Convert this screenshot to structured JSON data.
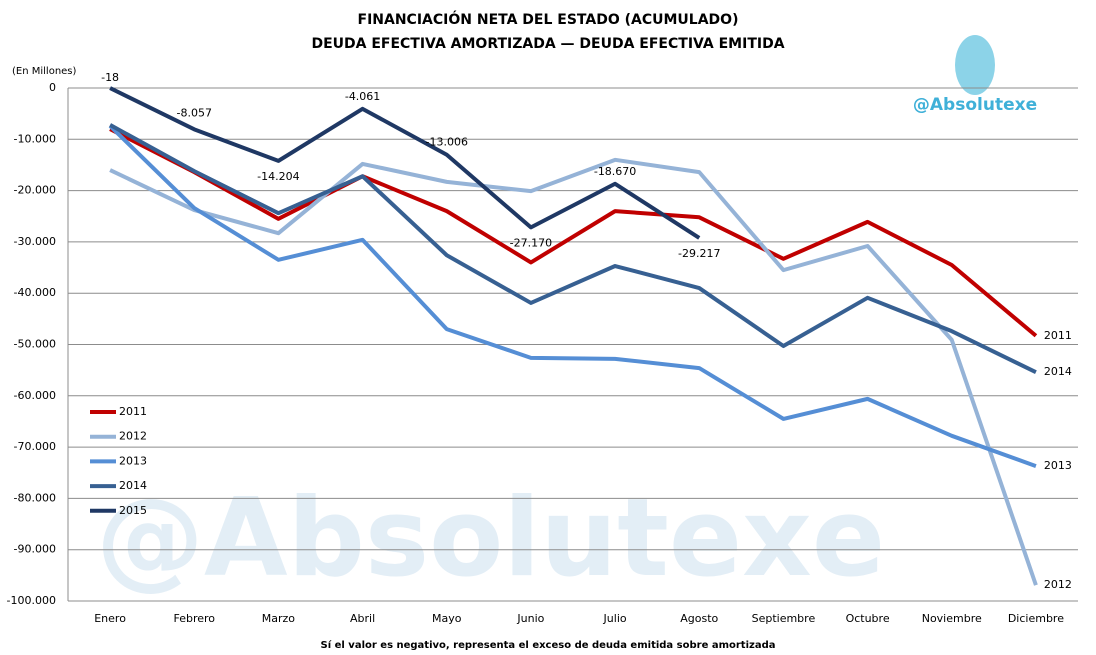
{
  "chart_data": {
    "type": "line",
    "title": "FINANCIACIÓN NETA DEL ESTADO (ACUMULADO)",
    "subtitle": "DEUDA EFECTIVA AMORTIZADA — DEUDA EFECTIVA EMITIDA",
    "y_label": "(En Millones)",
    "note": "Sí el valor es negativo, representa el exceso de deuda emitida sobre amortizada",
    "watermark": "@Absolutexe",
    "categories": [
      "Enero",
      "Febrero",
      "Marzo",
      "Abril",
      "Mayo",
      "Junio",
      "Julio",
      "Agosto",
      "Septiembre",
      "Octubre",
      "Noviembre",
      "Diciembre"
    ],
    "series": [
      {
        "name": "2011",
        "color": "#c00000",
        "values": [
          -8000,
          -16400,
          -25500,
          -17200,
          -24000,
          -34000,
          -24000,
          -25200,
          -33300,
          -26100,
          -34500,
          -48300
        ]
      },
      {
        "name": "2012",
        "color": "#95b3d7",
        "values": [
          -16000,
          -23800,
          -28300,
          -14800,
          -18300,
          -20100,
          -14000,
          -16400,
          -35500,
          -30800,
          -49100,
          -96900
        ]
      },
      {
        "name": "2013",
        "color": "#558ed5",
        "values": [
          -7400,
          -23400,
          -33500,
          -29600,
          -47000,
          -52600,
          -52800,
          -54600,
          -64500,
          -60600,
          -67800,
          -73700
        ]
      },
      {
        "name": "2014",
        "color": "#376092",
        "values": [
          -7200,
          -16200,
          -24400,
          -17200,
          -32600,
          -41900,
          -34700,
          -39000,
          -50300,
          -40900,
          -47400,
          -55400
        ]
      },
      {
        "name": "2015",
        "color": "#1f3864",
        "values": [
          -18,
          -8057,
          -14204,
          -4061,
          -13006,
          -27170,
          -18670,
          -29217,
          null,
          null,
          null,
          null
        ],
        "value_labels": [
          "-18",
          "-8.057",
          "-14.204",
          "-4.061",
          "-13.006",
          "-27.170",
          "-18.670",
          "-29.217",
          null,
          null,
          null,
          null
        ]
      }
    ],
    "ylim": [
      -100000,
      0
    ],
    "yticks": [
      0,
      {
        "value": -10000,
        "label": "-10.000"
      },
      {
        "value": -20000,
        "label": "-20.000"
      },
      {
        "value": -30000,
        "label": "-30.000"
      },
      {
        "value": -40000,
        "label": "-40.000"
      },
      {
        "value": -50000,
        "label": "-50.000"
      },
      {
        "value": -60000,
        "label": "-60.000"
      },
      {
        "value": -70000,
        "label": "-70.000"
      },
      {
        "value": -80000,
        "label": "-80.000"
      },
      {
        "value": -90000,
        "label": "-90.000"
      },
      {
        "value": -100000,
        "label": "-100.000"
      }
    ],
    "grid": true,
    "end_labels": true,
    "legend": "lower left"
  }
}
